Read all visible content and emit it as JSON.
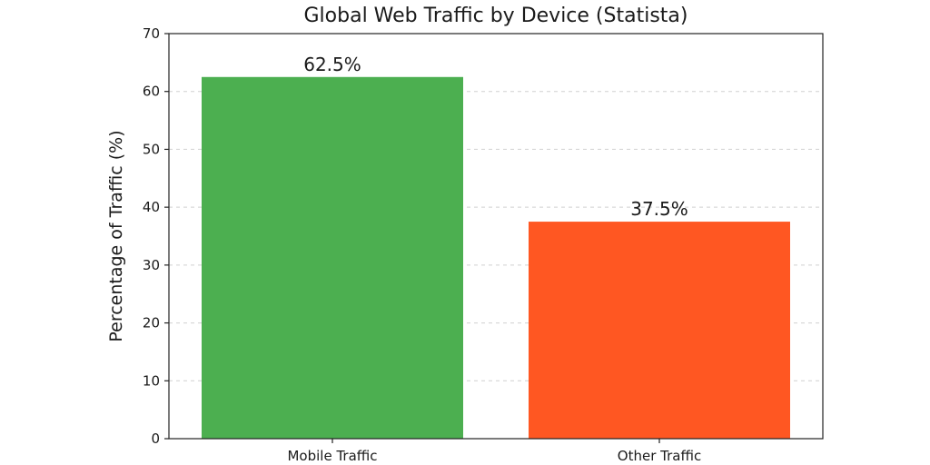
{
  "chart_data": {
    "type": "bar",
    "title": "Global Web Traffic by Device (Statista)",
    "xlabel": "",
    "ylabel": "Percentage of Traffic (%)",
    "categories": [
      "Mobile Traffic",
      "Other Traffic"
    ],
    "values": [
      62.5,
      37.5
    ],
    "data_labels": [
      "62.5%",
      "37.5%"
    ],
    "colors": [
      "#4caf50",
      "#ff5722"
    ],
    "ylim": [
      0,
      70
    ],
    "yticks": [
      0,
      10,
      20,
      30,
      40,
      50,
      60,
      70
    ],
    "grid": "y-dashed",
    "legend": "none"
  }
}
